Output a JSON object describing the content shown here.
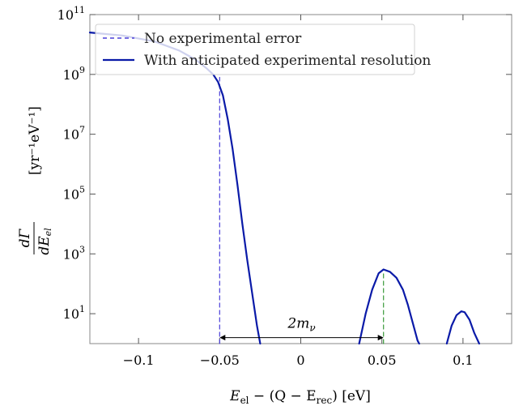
{
  "chart_data": {
    "type": "line",
    "xlabel": "E_el − (Q − E_rec) [eV]",
    "xlabel_parts": {
      "main": "E",
      "sub1": "el",
      "mid": " − (Q − E",
      "sub2": "rec",
      "end": ") [eV]"
    },
    "ylabel_parts": {
      "num": "dΓ",
      "den": "dE",
      "den_sub": "el",
      "unit": "[yr⁻¹eV⁻¹]"
    },
    "xlim": [
      -0.13,
      0.13
    ],
    "ylim_log10": [
      0,
      11
    ],
    "yscale": "log",
    "x_ticks": [
      {
        "value": -0.1,
        "label": "−0.1"
      },
      {
        "value": -0.05,
        "label": "−0.05"
      },
      {
        "value": 0,
        "label": "0"
      },
      {
        "value": 0.05,
        "label": "0.05"
      },
      {
        "value": 0.1,
        "label": "0.1"
      }
    ],
    "y_ticks": [
      {
        "exp": 1,
        "base": "10",
        "sup": "1"
      },
      {
        "exp": 3,
        "base": "10",
        "sup": "3"
      },
      {
        "exp": 5,
        "base": "10",
        "sup": "5"
      },
      {
        "exp": 7,
        "base": "10",
        "sup": "7"
      },
      {
        "exp": 9,
        "base": "10",
        "sup": "9"
      },
      {
        "exp": 11,
        "base": "10",
        "sup": "11"
      }
    ],
    "legend_position": "top-left",
    "series": [
      {
        "name": "No experimental error",
        "style": "dashed",
        "color": "#4a3fd8",
        "segments": [
          {
            "x": [
              -0.05,
              -0.05
            ],
            "log10y": [
              0,
              8.9
            ]
          },
          {
            "x": [
              0.051,
              0.051
            ],
            "log10y": [
              0,
              2.4
            ],
            "color": "#3a9a3a"
          }
        ]
      },
      {
        "name": "With anticipated experimental resolution",
        "style": "solid",
        "color": "#0a1aa8",
        "segments": [
          {
            "x": [
              -0.13,
              -0.11,
              -0.09,
              -0.075,
              -0.065,
              -0.058,
              -0.054,
              -0.051,
              -0.048,
              -0.045,
              -0.042,
              -0.039,
              -0.036,
              -0.033,
              -0.03,
              -0.027,
              -0.025
            ],
            "log10y": [
              10.4,
              10.3,
              10.1,
              9.8,
              9.5,
              9.2,
              9.0,
              8.75,
              8.3,
              7.5,
              6.5,
              5.3,
              4.0,
              2.8,
              1.7,
              0.6,
              0.0
            ]
          },
          {
            "x": [
              0.036,
              0.04,
              0.044,
              0.048,
              0.051,
              0.055,
              0.059,
              0.063,
              0.066,
              0.069,
              0.072,
              0.073
            ],
            "log10y": [
              0.0,
              1.0,
              1.8,
              2.35,
              2.48,
              2.4,
              2.2,
              1.8,
              1.3,
              0.7,
              0.1,
              0.0
            ]
          },
          {
            "x": [
              0.09,
              0.093,
              0.096,
              0.099,
              0.101,
              0.104,
              0.107,
              0.11
            ],
            "log10y": [
              0.0,
              0.6,
              0.95,
              1.08,
              1.05,
              0.8,
              0.35,
              0.0
            ]
          }
        ]
      }
    ],
    "annotation": {
      "text": "2m",
      "sub": "ν",
      "arrow_x": [
        -0.05,
        0.051
      ],
      "arrow_log10y": 0.2
    },
    "legend": {
      "items": [
        {
          "label": "No experimental error",
          "style": "dashed",
          "color": "#4a3fd8"
        },
        {
          "label": "With anticipated experimental resolution",
          "style": "solid",
          "color": "#0a1aa8"
        }
      ]
    }
  }
}
